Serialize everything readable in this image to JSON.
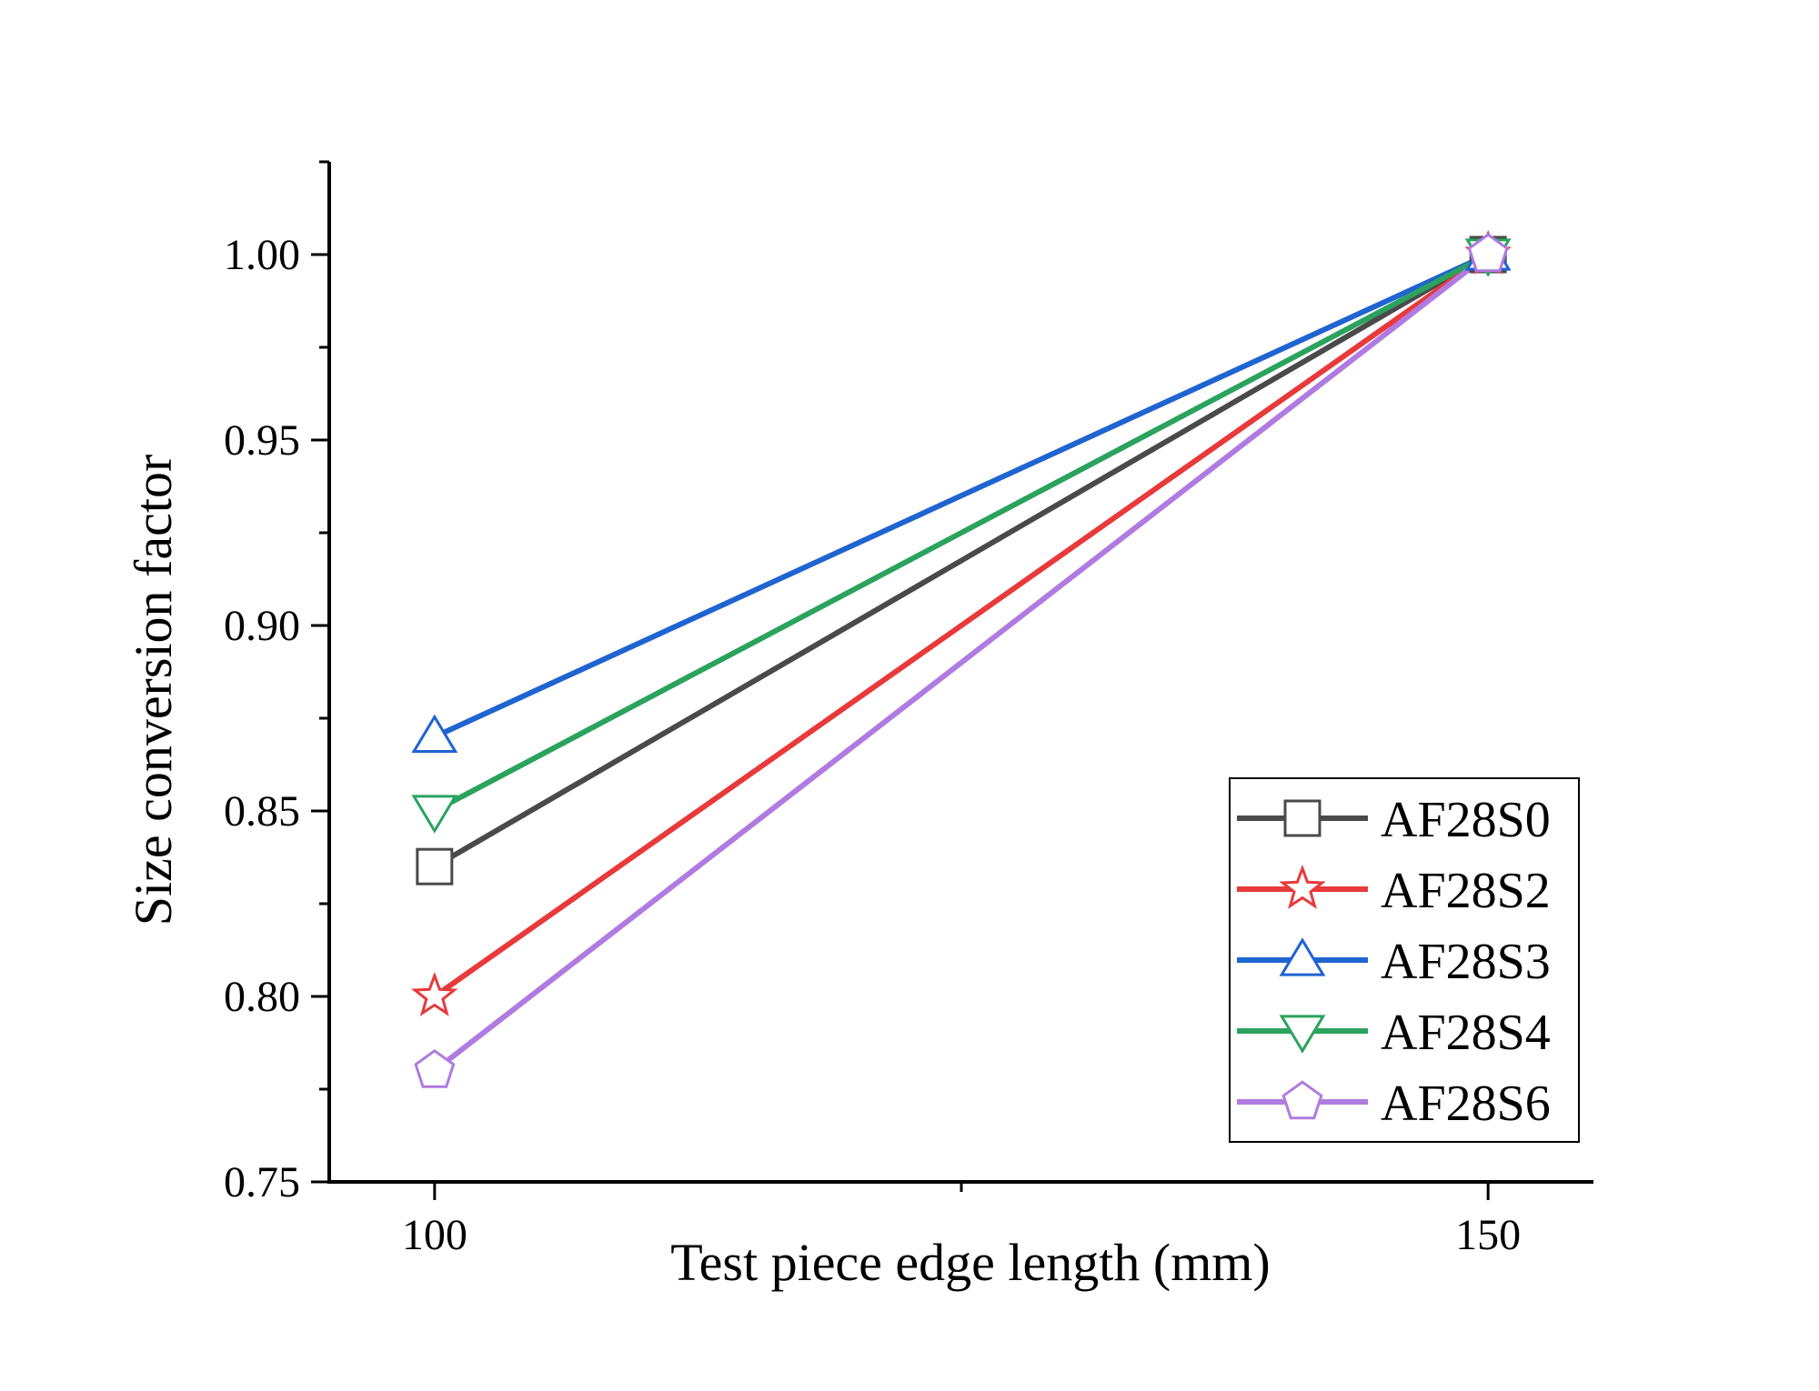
{
  "chart_data": {
    "type": "line",
    "xlabel": "Test piece edge length (mm)",
    "ylabel": "Size conversion factor",
    "x": [
      100,
      150
    ],
    "xticks": [
      "100",
      "150"
    ],
    "yticks": [
      "0.75",
      "0.80",
      "0.85",
      "0.90",
      "0.95",
      "1.00"
    ],
    "xlim": [
      95,
      155
    ],
    "ylim": [
      0.75,
      1.025
    ],
    "legend_position": "bottom-right",
    "series": [
      {
        "name": "AF28S0",
        "values": [
          0.835,
          1.0
        ],
        "color": "#4a4a4a",
        "marker": "square"
      },
      {
        "name": "AF28S2",
        "values": [
          0.8,
          1.0
        ],
        "color": "#e8393b",
        "marker": "star"
      },
      {
        "name": "AF28S3",
        "values": [
          0.87,
          1.0
        ],
        "color": "#1f64d1",
        "marker": "triangle-up"
      },
      {
        "name": "AF28S4",
        "values": [
          0.85,
          1.0
        ],
        "color": "#2ba25e",
        "marker": "triangle-down"
      },
      {
        "name": "AF28S6",
        "values": [
          0.78,
          1.0
        ],
        "color": "#b07be0",
        "marker": "pentagon"
      }
    ]
  }
}
